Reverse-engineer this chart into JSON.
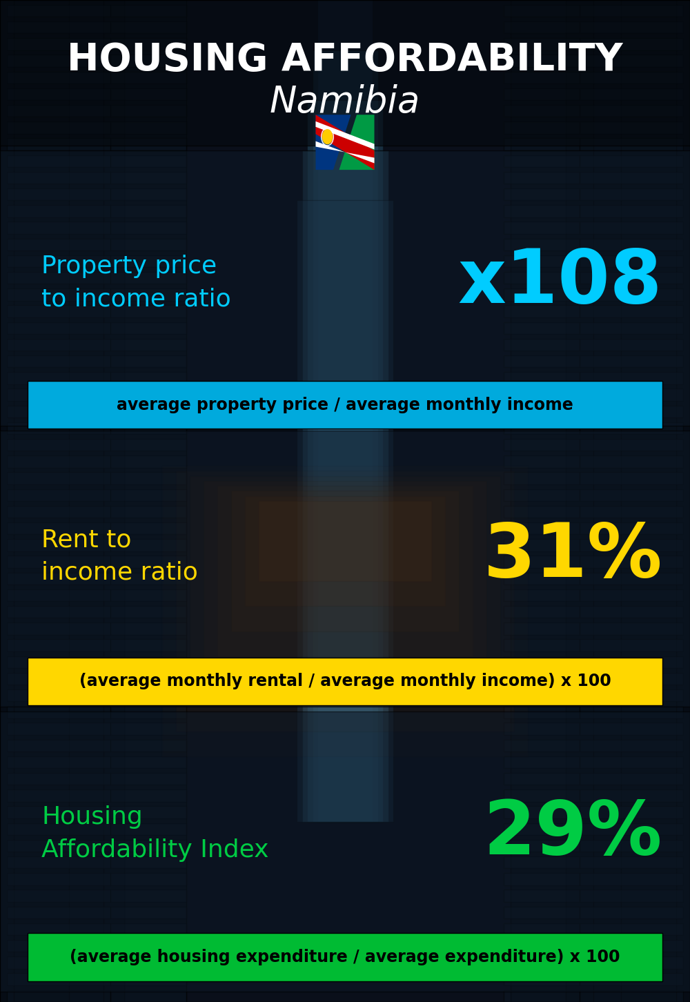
{
  "title_line1": "HOUSING AFFORDABILITY",
  "title_line2": "Namibia",
  "sections": [
    {
      "label": "Property price\nto income ratio",
      "value": "x108",
      "value_color": "#00CCFF",
      "label_color": "#00CCFF",
      "band_color": "#00AADD",
      "band_text": "average property price / average monthly income",
      "band_text_color": "#000000"
    },
    {
      "label": "Rent to\nincome ratio",
      "value": "31%",
      "value_color": "#FFD700",
      "label_color": "#FFD700",
      "band_color": "#FFD700",
      "band_text": "(average monthly rental / average monthly income) x 100",
      "band_text_color": "#000000"
    },
    {
      "label": "Housing\nAffordability Index",
      "value": "29%",
      "value_color": "#00CC44",
      "label_color": "#00CC44",
      "band_color": "#00BB33",
      "band_text": "(average housing expenditure / average expenditure) x 100",
      "band_text_color": "#000000"
    }
  ],
  "bg_dark": "#0a0f1a",
  "bg_mid": "#0d1520",
  "bg_light_center": "#1a2a3a",
  "title_color": "#FFFFFF",
  "title_fontsize": 40,
  "subtitle_fontsize": 38,
  "label_fontsize": 24,
  "value_fontsize": 78,
  "band_fontsize": 17,
  "section_label_fontsize": 26
}
